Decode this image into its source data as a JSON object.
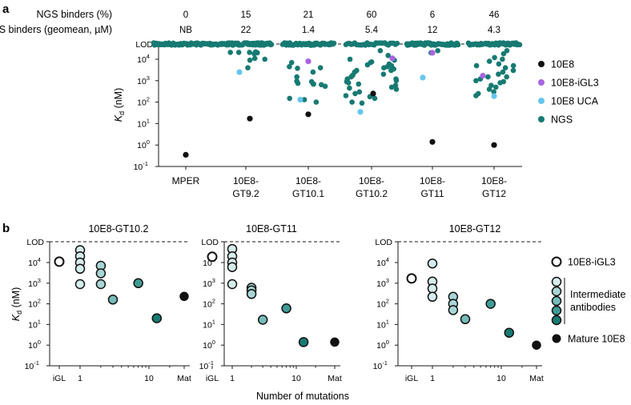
{
  "panel_a": {
    "label": "a",
    "header_rows": [
      {
        "label": "NGS binders (%)",
        "values": [
          "0",
          "15",
          "21",
          "60",
          "6",
          "46"
        ]
      },
      {
        "label": "NGS binders (geomean, µM)",
        "values": [
          "NB",
          "22",
          "1.4",
          "5.4",
          "12",
          "4.3"
        ]
      }
    ],
    "legend": [
      {
        "label": "10E8",
        "color": "#111111"
      },
      {
        "label": "10E8-iGL3",
        "color": "#a865e0"
      },
      {
        "label": "10E8 UCA",
        "color": "#66c6ee"
      },
      {
        "label": "NGS",
        "color": "#177a72"
      }
    ]
  },
  "panel_b": {
    "label": "b",
    "xlabel": "Number of mutations",
    "legend": [
      {
        "label": "10E8-iGL3",
        "color": "#ffffff"
      },
      {
        "label": "Intermediate antibodies",
        "line1": "Intermediate",
        "line2": "antibodies",
        "colors": [
          "#d7ecec",
          "#a8d6d5",
          "#76bcb9",
          "#3e9b95",
          "#177a72"
        ]
      },
      {
        "label": "Mature 10E8",
        "color": "#111111"
      }
    ]
  },
  "chart_data": [
    {
      "type": "scatter",
      "title": "",
      "xlabel": "",
      "ylabel": "Kd (nM)",
      "yscale": "log",
      "ylim": [
        0.1,
        80000
      ],
      "yticks": [
        "10^-1",
        "10^0",
        "10^1",
        "10^2",
        "10^3",
        "10^4",
        "LOD"
      ],
      "lod_line": 50000,
      "categories": [
        "MPER",
        "10E8-GT9.2",
        "10E8-GT10.1",
        "10E8-GT10.2",
        "10E8-GT11",
        "10E8-GT12"
      ],
      "category_line1": [
        "MPER",
        "10E8-",
        "10E8-",
        "10E8-",
        "10E8-",
        "10E8-"
      ],
      "category_line2": [
        "",
        "GT9.2",
        "GT10.1",
        "GT10.2",
        "GT11",
        "GT12"
      ],
      "series": [
        {
          "name": "10E8",
          "values": [
            0.35,
            17,
            27,
            250,
            1.4,
            1.0
          ]
        },
        {
          "name": "10E8-iGL3",
          "values": [
            null,
            null,
            8000,
            11000,
            20000,
            1700
          ]
        },
        {
          "name": "10E8 UCA",
          "values": [
            null,
            2500,
            130,
            35,
            1400,
            190
          ]
        },
        {
          "name": "NGS",
          "non_binders_at_LOD": [
            73,
            62,
            58,
            30,
            68,
            42
          ],
          "binder_values": [
            [],
            [
              21000,
              21000,
              11000,
              10000,
              4000,
              21000,
              20000,
              18000,
              22000,
              9000
            ],
            [
              7000,
              4500,
              2500,
              1500,
              900,
              750,
              950,
              700,
              700,
              650,
              3800,
              550,
              150,
              100,
              130,
              4000
            ],
            [
              25000,
              15000,
              10000,
              9000,
              7500,
              6000,
              5500,
              5000,
              4500,
              4000,
              3500,
              3000,
              2500,
              2000,
              1800,
              1500,
              1200,
              1000,
              900,
              800,
              700,
              600,
              500,
              400,
              300,
              250,
              200,
              180,
              150,
              100,
              90,
              7000,
              3000,
              1200,
              900,
              450
            ],
            [
              25000,
              20000
            ],
            [
              25000,
              18000,
              12000,
              10000,
              8000,
              6000,
              5000,
              4000,
              3000,
              2500,
              2000,
              1500,
              1200,
              1000,
              900,
              800,
              600,
              500,
              400,
              300,
              250,
              200,
              5000,
              1500
            ]
          ]
        }
      ]
    },
    {
      "type": "scatter",
      "title": "10E8-GT10.2",
      "xlabel": "Number of mutations",
      "ylabel": "Kd (nM)",
      "xscale": "log",
      "xticks": [
        "iGL",
        "1",
        "10",
        "Mat"
      ],
      "yscale": "log",
      "ylim": [
        0.1,
        50000
      ],
      "lod": "LOD",
      "points": [
        {
          "x": "iGL",
          "kd": 11000,
          "group": "iGL3"
        },
        {
          "x": 1,
          "kd": 40000,
          "group": "intermediate-1"
        },
        {
          "x": 1,
          "kd": 20000,
          "group": "intermediate-1"
        },
        {
          "x": 1,
          "kd": 10000,
          "group": "intermediate-1"
        },
        {
          "x": 1,
          "kd": 5000,
          "group": "intermediate-1"
        },
        {
          "x": 1,
          "kd": 900,
          "group": "intermediate-1"
        },
        {
          "x": 2,
          "kd": 7000,
          "group": "intermediate-2"
        },
        {
          "x": 2,
          "kd": 3000,
          "group": "intermediate-2"
        },
        {
          "x": 2,
          "kd": 900,
          "group": "intermediate-2"
        },
        {
          "x": 3,
          "kd": 160,
          "group": "intermediate-3"
        },
        {
          "x": 7,
          "kd": 1000,
          "group": "intermediate-4"
        },
        {
          "x": 13,
          "kd": 20,
          "group": "intermediate-5"
        },
        {
          "x": "Mat",
          "kd": 230,
          "group": "mature"
        }
      ]
    },
    {
      "type": "scatter",
      "title": "10E8-GT11",
      "xlabel": "Number of mutations",
      "ylabel": "Kd (nM)",
      "xscale": "log",
      "xticks": [
        "iGL",
        "1",
        "10",
        "Mat"
      ],
      "yscale": "log",
      "ylim": [
        0.1,
        50000
      ],
      "lod": "LOD",
      "points": [
        {
          "x": "iGL",
          "kd": 19000,
          "group": "iGL3"
        },
        {
          "x": 1,
          "kd": 45000,
          "group": "intermediate-1"
        },
        {
          "x": 1,
          "kd": 20000,
          "group": "intermediate-1"
        },
        {
          "x": 1,
          "kd": 10000,
          "group": "intermediate-1"
        },
        {
          "x": 1,
          "kd": 6000,
          "group": "intermediate-1"
        },
        {
          "x": 1,
          "kd": 900,
          "group": "intermediate-1"
        },
        {
          "x": 2,
          "kd": 600,
          "group": "intermediate-2"
        },
        {
          "x": 2,
          "kd": 450,
          "group": "intermediate-2"
        },
        {
          "x": 2,
          "kd": 300,
          "group": "intermediate-2"
        },
        {
          "x": 3,
          "kd": 17,
          "group": "intermediate-3"
        },
        {
          "x": 7,
          "kd": 60,
          "group": "intermediate-4"
        },
        {
          "x": 13,
          "kd": 1.4,
          "group": "intermediate-5"
        },
        {
          "x": "Mat",
          "kd": 1.4,
          "group": "mature"
        }
      ]
    },
    {
      "type": "scatter",
      "title": "10E8-GT12",
      "xlabel": "Number of mutations",
      "ylabel": "Kd (nM)",
      "xscale": "log",
      "xticks": [
        "iGL",
        "1",
        "10",
        "Mat"
      ],
      "yscale": "log",
      "ylim": [
        0.1,
        50000
      ],
      "lod": "LOD",
      "points": [
        {
          "x": "iGL",
          "kd": 1700,
          "group": "iGL3"
        },
        {
          "x": 1,
          "kd": 9000,
          "group": "intermediate-1"
        },
        {
          "x": 1,
          "kd": 1200,
          "group": "intermediate-1"
        },
        {
          "x": 1,
          "kd": 550,
          "group": "intermediate-1"
        },
        {
          "x": 1,
          "kd": 220,
          "group": "intermediate-1"
        },
        {
          "x": 2,
          "kd": 220,
          "group": "intermediate-2"
        },
        {
          "x": 2,
          "kd": 100,
          "group": "intermediate-2"
        },
        {
          "x": 2,
          "kd": 50,
          "group": "intermediate-2"
        },
        {
          "x": 3,
          "kd": 18,
          "group": "intermediate-3"
        },
        {
          "x": 7,
          "kd": 100,
          "group": "intermediate-4"
        },
        {
          "x": 13,
          "kd": 4,
          "group": "intermediate-5"
        },
        {
          "x": "Mat",
          "kd": 1.0,
          "group": "mature"
        }
      ]
    }
  ]
}
